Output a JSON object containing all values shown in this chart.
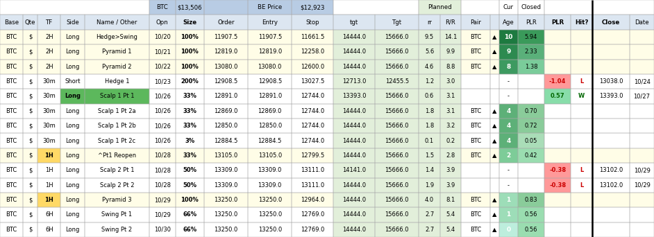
{
  "col_widths_raw": [
    3.0,
    2.0,
    3.0,
    3.2,
    8.5,
    3.5,
    3.8,
    5.8,
    5.8,
    5.5,
    5.5,
    5.8,
    2.8,
    2.8,
    3.8,
    1.2,
    2.5,
    3.5,
    3.5,
    2.8,
    5.0,
    3.2
  ],
  "rows": [
    [
      "BTC",
      "$",
      "2H",
      "Long",
      "Hedge>Swing",
      "10/20",
      "100%",
      "11907.5",
      "11907.5",
      "11661.5",
      "14444.0",
      "15666.0",
      "9.5",
      "14.1",
      "BTC",
      "▲",
      "10",
      "5.94",
      "",
      "",
      "",
      ""
    ],
    [
      "BTC",
      "$",
      "2H",
      "Long",
      "Pyramid 1",
      "10/21",
      "100%",
      "12819.0",
      "12819.0",
      "12258.0",
      "14444.0",
      "15666.0",
      "5.6",
      "9.9",
      "BTC",
      "▲",
      "9",
      "2.33",
      "",
      "",
      "",
      ""
    ],
    [
      "BTC",
      "$",
      "2H",
      "Long",
      "Pyramid 2",
      "10/22",
      "100%",
      "13080.0",
      "13080.0",
      "12600.0",
      "14444.0",
      "15666.0",
      "4.6",
      "8.8",
      "BTC",
      "▲",
      "8",
      "1.38",
      "",
      "",
      "",
      ""
    ],
    [
      "BTC",
      "$",
      "30m",
      "Short",
      "Hedge 1",
      "10/23",
      "200%",
      "12908.5",
      "12908.5",
      "13027.5",
      "12713.0",
      "12455.5",
      "1.2",
      "3.0",
      "",
      "",
      "-",
      "",
      "-1.04",
      "L",
      "13038.0",
      "10/24"
    ],
    [
      "BTC",
      "$",
      "30m",
      "Long",
      "Scalp 1 Pt 1",
      "10/26",
      "33%",
      "12891.0",
      "12891.0",
      "12744.0",
      "13393.0",
      "15666.0",
      "0.6",
      "3.1",
      "",
      "",
      "-",
      "",
      "0.57",
      "W",
      "13393.0",
      "10/27"
    ],
    [
      "BTC",
      "$",
      "30m",
      "Long",
      "Scalp 1 Pt 2a",
      "10/26",
      "33%",
      "12869.0",
      "12869.0",
      "12744.0",
      "14444.0",
      "15666.0",
      "1.8",
      "3.1",
      "BTC",
      "▲",
      "4",
      "0.70",
      "",
      "",
      "",
      ""
    ],
    [
      "BTC",
      "$",
      "30m",
      "Long",
      "Scalp 1 Pt 2b",
      "10/26",
      "33%",
      "12850.0",
      "12850.0",
      "12744.0",
      "14444.0",
      "15666.0",
      "1.8",
      "3.2",
      "BTC",
      "▲",
      "4",
      "0.72",
      "",
      "",
      "",
      ""
    ],
    [
      "BTC",
      "$",
      "30m",
      "Long",
      "Scalp 1 Pt 2c",
      "10/26",
      "3%",
      "12884.5",
      "12884.5",
      "12744.0",
      "14444.0",
      "15666.0",
      "0.1",
      "0.2",
      "BTC",
      "▲",
      "4",
      "0.05",
      "",
      "",
      "",
      ""
    ],
    [
      "BTC",
      "$",
      "1H",
      "Long",
      "^Pt1 Reopen",
      "10/28",
      "33%",
      "13105.0",
      "13105.0",
      "12799.5",
      "14444.0",
      "15666.0",
      "1.5",
      "2.8",
      "BTC",
      "▲",
      "2",
      "0.42",
      "",
      "",
      "",
      ""
    ],
    [
      "BTC",
      "$",
      "1H",
      "Long",
      "Scalp 2 Pt 1",
      "10/28",
      "50%",
      "13309.0",
      "13309.0",
      "13111.0",
      "14141.0",
      "15666.0",
      "1.4",
      "3.9",
      "",
      "",
      "-",
      "",
      "-0.38",
      "L",
      "13102.0",
      "10/29"
    ],
    [
      "BTC",
      "$",
      "1H",
      "Long",
      "Scalp 2 Pt 2",
      "10/28",
      "50%",
      "13309.0",
      "13309.0",
      "13111.0",
      "14444.0",
      "15666.0",
      "1.9",
      "3.9",
      "",
      "",
      "-",
      "",
      "-0.38",
      "L",
      "13102.0",
      "10/29"
    ],
    [
      "BTC",
      "$",
      "1H",
      "Long",
      "Pyramid 3",
      "10/29",
      "100%",
      "13250.0",
      "13250.0",
      "12964.0",
      "14444.0",
      "15666.0",
      "4.0",
      "8.1",
      "BTC",
      "▲",
      "1",
      "0.83",
      "",
      "",
      "",
      ""
    ],
    [
      "BTC",
      "$",
      "6H",
      "Long",
      "Swing Pt 1",
      "10/29",
      "66%",
      "13250.0",
      "13250.0",
      "12769.0",
      "14444.0",
      "15666.0",
      "2.7",
      "5.4",
      "BTC",
      "▲",
      "1",
      "0.56",
      "",
      "",
      "",
      ""
    ],
    [
      "BTC",
      "$",
      "6H",
      "Long",
      "Swing Pt 2",
      "10/30",
      "66%",
      "13250.0",
      "13250.0",
      "12769.0",
      "14444.0",
      "15666.0",
      "2.7",
      "5.4",
      "BTC",
      "▲",
      "0",
      "0.56",
      "",
      "",
      "",
      ""
    ]
  ],
  "header1_merges": [
    [
      0,
      5,
      "",
      "#ffffff"
    ],
    [
      5,
      6,
      "BTC",
      "#b8cce4"
    ],
    [
      6,
      7,
      "$13,506",
      "#b8cce4"
    ],
    [
      7,
      8,
      "",
      "#b8cce4"
    ],
    [
      8,
      9,
      "BE Price",
      "#b8cce4"
    ],
    [
      9,
      10,
      "$12,923",
      "#b8cce4"
    ],
    [
      10,
      12,
      "",
      "#ffffff"
    ],
    [
      12,
      14,
      "Planned",
      "#e2efda"
    ],
    [
      14,
      16,
      "",
      "#ffffff"
    ],
    [
      16,
      17,
      "Cur",
      "#ffffff"
    ],
    [
      17,
      18,
      "Closed",
      "#ffffff"
    ],
    [
      18,
      22,
      "",
      "#ffffff"
    ]
  ],
  "header2_labels": [
    "Base",
    "Qte",
    "TF",
    "Side",
    "Name / Other",
    "Opn",
    "Size",
    "Order",
    "Entry",
    "Stop",
    "tgt",
    "Tgt",
    "rr",
    "R/R",
    "Pair",
    "",
    "Age",
    "PLR",
    "PLR",
    "Hit?",
    "Close",
    "Date"
  ],
  "header2_bold": [
    false,
    false,
    false,
    false,
    false,
    false,
    true,
    false,
    false,
    false,
    false,
    false,
    false,
    false,
    false,
    false,
    false,
    false,
    true,
    true,
    true,
    false
  ],
  "header_bg1": "#b8cce4",
  "header_bg2": "#dce6f1",
  "tgt_bg": "#e2efda",
  "planned_bg": "#e2efda",
  "row_bgs": [
    "#fffde7",
    "#fffde7",
    "#fffde7",
    "#ffffff",
    "#ffffff",
    "#ffffff",
    "#ffffff",
    "#ffffff",
    "#fffde7",
    "#ffffff",
    "#ffffff",
    "#fffde7",
    "#ffffff",
    "#ffffff"
  ],
  "tf_highlight_rows": [
    8,
    11
  ],
  "tf_highlight_color": "#ffd966",
  "scalp1pt1_row": 4,
  "scalp1pt1_color": "#5cb85c",
  "age_colors": {
    "10": "#1d7a40",
    "9": "#2d8a50",
    "8": "#3d9a60",
    "4": "#5db078",
    "2": "#7dcc98",
    "1": "#9dddb8",
    "0": "#bdeedd"
  },
  "plr_cur_colors": {
    "5.94": "#3a9a5a",
    "2.33": "#5ab07a",
    "1.38": "#7acc9a",
    "0.70": "#8acc9a",
    "0.72": "#8acc9a",
    "0.05": "#aaddb8",
    "0.42": "#9addb0",
    "0.83": "#8acc9a",
    "0.56": "#9addb0"
  },
  "closed_neg_bg": "#ff9999",
  "closed_neg_color": "#cc0000",
  "closed_pos_bg": "#88ddaa",
  "closed_pos_color": "#006600",
  "border_color": "#aaaaaa",
  "thick_line_col": 20
}
